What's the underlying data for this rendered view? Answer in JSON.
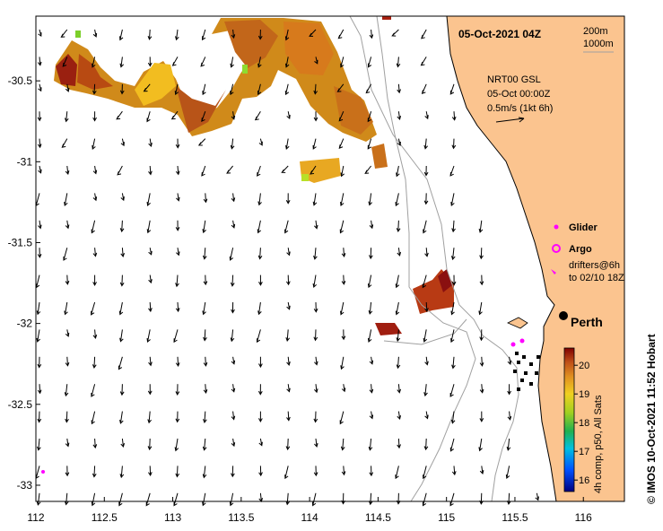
{
  "map": {
    "title": "05-Oct-2021 04Z",
    "depth_legend": [
      "200m",
      "1000m"
    ],
    "velocity_info": [
      "NRT00 GSL",
      "05-Oct 00:00Z",
      "0.5m/s (1kt 6h)"
    ],
    "longitude": {
      "min": 112,
      "max": 116.3
    },
    "latitude": {
      "min": -33.1,
      "max": -30.1
    },
    "x_ticks": [
      "112",
      "112.5",
      "113",
      "113.5",
      "114",
      "114.5",
      "115",
      "115.5",
      "116"
    ],
    "x_tick_values": [
      112,
      112.5,
      113,
      113.5,
      114,
      114.5,
      115,
      115.5,
      116
    ],
    "y_ticks": [
      "-30.5",
      "-31",
      "-31.5",
      "-32",
      "-32.5",
      "-33"
    ],
    "y_tick_values": [
      -30.5,
      -31,
      -31.5,
      -32,
      -32.5,
      -33
    ],
    "legend": {
      "glider": "Glider",
      "argo": "Argo",
      "drifters": [
        "drifters@6h",
        "to 02/10 18Z"
      ]
    },
    "city": {
      "name": "Perth",
      "lon": 115.86,
      "lat": -31.95
    },
    "colorbar": {
      "labels": [
        "20",
        "19",
        "18",
        "17",
        "16"
      ],
      "values": [
        20,
        19,
        18,
        17,
        16
      ],
      "min": 15.6,
      "max": 20.6,
      "caption": "4h comp, p50, All Sats"
    },
    "credit": "© IMOS 10-Oct-2021 11:52 Hobart",
    "colors": {
      "land": "#fbc48f",
      "glider": "#ff00ff",
      "argo": "#ff00ff",
      "isobath": "#a0a0a0"
    }
  }
}
